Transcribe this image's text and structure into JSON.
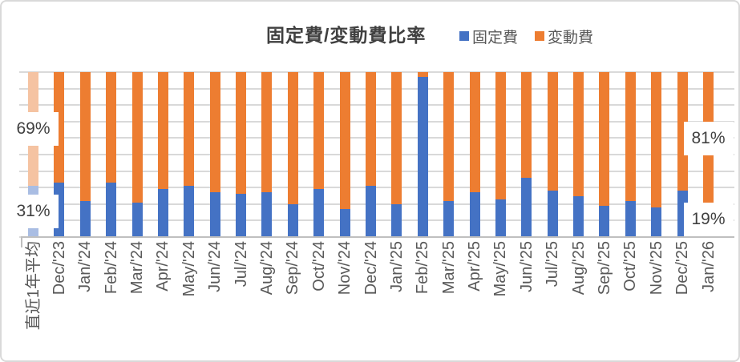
{
  "chart_data": {
    "type": "bar",
    "subtype": "stacked-100-percent",
    "title": "固定費/変動費比率",
    "legend_position": "top-right",
    "grid": true,
    "ylim": [
      0,
      100
    ],
    "y_axis_labels_visible": false,
    "categories": [
      "直近1年平均",
      "Dec/'23",
      "Jan/'24",
      "Feb/'24",
      "Mar/'24",
      "Apr/'24",
      "May/'24",
      "Jun/'24",
      "Jul/'24",
      "Aug/'24",
      "Sep/'24",
      "Oct/'24",
      "Nov/'24",
      "Dec/'24",
      "Jan/'25",
      "Feb/'25",
      "Mar/'25",
      "Apr/'25",
      "May/'25",
      "Jun/'25",
      "Jul/'25",
      "Aug/'25",
      "Sep/'25",
      "Oct/'25",
      "Nov/'25",
      "Dec/'25",
      "Jan/'26"
    ],
    "series": [
      {
        "name": "固定費",
        "color": "#4472C4",
        "values": [
          31,
          33,
          22,
          33,
          21,
          29,
          31,
          27,
          26,
          27,
          20,
          29,
          17,
          31,
          20,
          97,
          22,
          27,
          23,
          36,
          28,
          25,
          19,
          22,
          18,
          28,
          19
        ]
      },
      {
        "name": "変動費",
        "color": "#ED7D31",
        "values": [
          69,
          67,
          78,
          67,
          79,
          71,
          69,
          73,
          74,
          73,
          80,
          71,
          83,
          69,
          80,
          3,
          78,
          73,
          77,
          64,
          72,
          75,
          81,
          78,
          82,
          72,
          81
        ]
      }
    ],
    "faded_category_index": 0,
    "data_labels": [
      {
        "text": "69%",
        "category_index": 0,
        "center_pct": 65.5
      },
      {
        "text": "31%",
        "category_index": 0,
        "center_pct": 15.5
      },
      {
        "text": "81%",
        "category_index": 26,
        "center_pct": 59.5
      },
      {
        "text": "19%",
        "category_index": 26,
        "center_pct": 9.5
      }
    ]
  },
  "colors": {
    "fixed": "#4472C4",
    "variable": "#ED7D31",
    "fixed_faded": "#A9BDE3",
    "variable_faded": "#F5C3A2",
    "gridline": "#D9D9D9",
    "axis_line": "#BFBFBF",
    "axis_text": "#595959",
    "title_text": "#404040",
    "data_label_text": "#404040",
    "chart_border": "#D9D9D9",
    "background": "#FFFFFF"
  }
}
